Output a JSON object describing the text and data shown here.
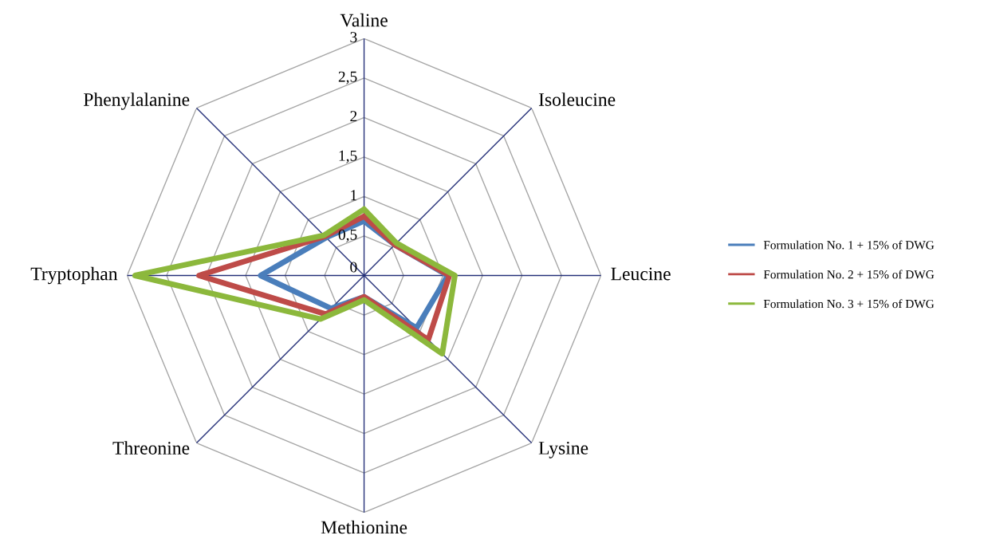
{
  "chart_data": {
    "type": "radar",
    "categories": [
      "Valine",
      "Isoleucine",
      "Leucine",
      "Lysine",
      "Methionine",
      "Threonine",
      "Tryptophan",
      "Phenylalanine"
    ],
    "series": [
      {
        "name": "Formulation No. 1 + 15% of DWG",
        "color": "#4a7ebb",
        "values": [
          0.69,
          0.55,
          1.06,
          0.94,
          0.27,
          0.59,
          1.31,
          0.68
        ]
      },
      {
        "name": "Formulation No. 2 + 15% of DWG",
        "color": "#be4b48",
        "values": [
          0.75,
          0.55,
          1.08,
          1.15,
          0.27,
          0.69,
          2.09,
          0.7
        ]
      },
      {
        "name": "Formulation No. 3 + 15% of DWG",
        "color": "#8cb83c",
        "values": [
          0.84,
          0.58,
          1.15,
          1.4,
          0.31,
          0.78,
          2.9,
          0.72
        ]
      }
    ],
    "ylim": [
      0,
      3
    ],
    "yticks": [
      0,
      {
        "value": 0.5,
        "label": "0,5"
      },
      1,
      {
        "value": 1.5,
        "label": "1,5"
      },
      2,
      {
        "value": 2.5,
        "label": "2,5"
      },
      3
    ],
    "grid": true,
    "legend": "right"
  }
}
